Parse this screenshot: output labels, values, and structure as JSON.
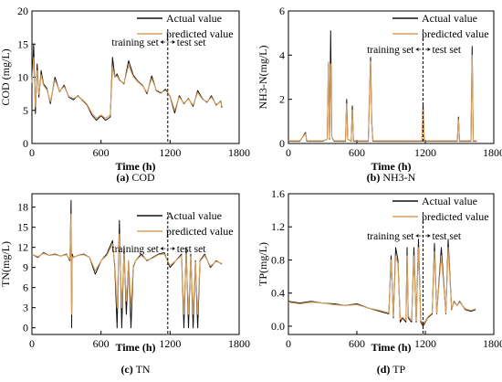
{
  "colors": {
    "actual": "#111111",
    "predicted": "#d9a05c",
    "predicted_peaks": "#c83a3a",
    "split_line": "#000000"
  },
  "chart_data": [
    {
      "type": "line",
      "panel_tag": "(a)",
      "caption": "COD",
      "xlabel": "Time (h)",
      "ylabel": "COD (mg/L)",
      "xlim": [
        0,
        1800
      ],
      "ylim": [
        0,
        20
      ],
      "xticks": [
        "0",
        "600",
        "1200",
        "1800"
      ],
      "yticks": [
        "0",
        "5",
        "10",
        "15",
        "20"
      ],
      "legend": [
        "Actual value",
        "predicted value"
      ],
      "legend_position": "top-right",
      "split_label": "training set",
      "split_label_right": "test set",
      "split_x": 1180,
      "series": [
        {
          "name": "Actual value",
          "x": [
            0,
            15,
            30,
            45,
            60,
            80,
            100,
            130,
            160,
            200,
            240,
            280,
            320,
            360,
            400,
            440,
            480,
            520,
            560,
            600,
            640,
            680,
            700,
            720,
            740,
            760,
            800,
            840,
            880,
            920,
            960,
            1000,
            1040,
            1080,
            1120,
            1160,
            1200,
            1240,
            1280,
            1320,
            1360,
            1400,
            1440,
            1480,
            1520,
            1560,
            1600,
            1640,
            1650
          ],
          "y": [
            9,
            15,
            4.5,
            12,
            7,
            11,
            9,
            8.3,
            6,
            10,
            7.8,
            8.8,
            7,
            6.6,
            7.2,
            6.5,
            5.8,
            4.3,
            3.5,
            4.2,
            3.5,
            4,
            13,
            10,
            10.5,
            9.6,
            9,
            12.5,
            10.3,
            9.4,
            8.8,
            7.5,
            10.2,
            8,
            7.6,
            8.2,
            7.1,
            4.6,
            7.2,
            6,
            6.8,
            5.6,
            8,
            6.8,
            6.2,
            7.2,
            5.8,
            6.4,
            5.4
          ]
        },
        {
          "name": "predicted value",
          "x": [
            0,
            15,
            30,
            45,
            60,
            80,
            100,
            130,
            160,
            200,
            240,
            280,
            320,
            360,
            400,
            440,
            480,
            520,
            560,
            600,
            640,
            680,
            700,
            720,
            740,
            760,
            800,
            840,
            880,
            920,
            960,
            1000,
            1040,
            1080,
            1120,
            1160,
            1200,
            1240,
            1280,
            1320,
            1360,
            1400,
            1440,
            1480,
            1520,
            1560,
            1600,
            1640,
            1650
          ],
          "y": [
            9.2,
            13,
            5.5,
            11,
            7.4,
            10.4,
            8.8,
            8.1,
            6.3,
            9.6,
            7.9,
            8.6,
            7.1,
            6.8,
            7.1,
            6.6,
            5.9,
            4.6,
            3.8,
            4.3,
            3.8,
            4.3,
            11.5,
            10,
            10.2,
            9.5,
            9.1,
            11.8,
            10.1,
            9.3,
            8.7,
            7.7,
            9.8,
            8.1,
            7.7,
            8,
            7.2,
            5,
            7,
            6.1,
            6.7,
            5.8,
            7.7,
            6.7,
            6.3,
            7,
            5.9,
            6.3,
            5.6
          ]
        }
      ]
    },
    {
      "type": "line",
      "panel_tag": "(b)",
      "caption": "NH3-N",
      "xlabel": "Time (h)",
      "ylabel": "NH3-N(mg/L)",
      "xlim": [
        0,
        1800
      ],
      "ylim": [
        0,
        6
      ],
      "xticks": [
        "0",
        "600",
        "1200",
        "1800"
      ],
      "yticks": [
        "0",
        "2",
        "4",
        "6"
      ],
      "legend": [
        "Actual value",
        "predicted value"
      ],
      "legend_position": "top-right",
      "split_label": "training set",
      "split_label_right": "test set",
      "split_x": 1180,
      "series": [
        {
          "name": "Actual value",
          "x": [
            0,
            100,
            150,
            160,
            200,
            300,
            340,
            350,
            360,
            370,
            380,
            400,
            450,
            500,
            510,
            520,
            550,
            560,
            570,
            600,
            700,
            720,
            730,
            740,
            800,
            900,
            1000,
            1100,
            1170,
            1180,
            1190,
            1300,
            1400,
            1480,
            1490,
            1500,
            1550,
            1600,
            1610,
            1620,
            1650
          ],
          "y": [
            0.1,
            0.1,
            0.5,
            0.1,
            0.1,
            0.1,
            0.2,
            3.6,
            0.2,
            5.1,
            0.3,
            0.1,
            0.1,
            0.1,
            2.0,
            0.2,
            0.1,
            1.7,
            0.1,
            0.1,
            0.1,
            3.9,
            1.0,
            0.1,
            0.1,
            0.1,
            0.1,
            0.1,
            0.1,
            1.8,
            0.1,
            0.1,
            0.1,
            0.1,
            1.2,
            0.1,
            0.1,
            0.1,
            4.4,
            0.1,
            0.1
          ]
        },
        {
          "name": "predicted value",
          "x": [
            0,
            100,
            150,
            160,
            200,
            300,
            340,
            350,
            360,
            370,
            380,
            400,
            450,
            500,
            510,
            520,
            550,
            560,
            570,
            600,
            700,
            720,
            730,
            740,
            800,
            900,
            1000,
            1100,
            1170,
            1180,
            1190,
            1300,
            1400,
            1480,
            1490,
            1500,
            1550,
            1600,
            1610,
            1620,
            1650
          ],
          "y": [
            0.12,
            0.12,
            0.45,
            0.12,
            0.12,
            0.12,
            0.2,
            3.7,
            0.25,
            3.6,
            0.3,
            0.12,
            0.12,
            0.12,
            1.8,
            0.2,
            0.12,
            1.5,
            0.12,
            0.12,
            0.12,
            3.7,
            0.9,
            0.12,
            0.12,
            0.12,
            0.12,
            0.12,
            0.12,
            1.6,
            0.12,
            0.12,
            0.12,
            0.12,
            1.1,
            0.12,
            0.12,
            0.12,
            4.0,
            0.12,
            0.12
          ]
        }
      ]
    },
    {
      "type": "line",
      "panel_tag": "(c)",
      "caption": "TN",
      "xlabel": "Time (h)",
      "ylabel": "TN(mg/L)",
      "xlim": [
        0,
        1800
      ],
      "ylim": [
        -1,
        20
      ],
      "xticks": [
        "0",
        "600",
        "1200",
        "1800"
      ],
      "yticks": [
        "0",
        "3",
        "6",
        "9",
        "12",
        "15",
        "18"
      ],
      "legend": [
        "Actual value",
        "predicted value"
      ],
      "legend_position": "top-right",
      "split_label": "training set",
      "split_label_right": "test set",
      "split_x": 1180,
      "series": [
        {
          "name": "Actual value",
          "x": [
            0,
            50,
            100,
            150,
            200,
            250,
            300,
            330,
            340,
            345,
            350,
            360,
            400,
            450,
            500,
            550,
            600,
            650,
            700,
            720,
            740,
            760,
            780,
            800,
            820,
            840,
            860,
            880,
            900,
            950,
            1000,
            1050,
            1100,
            1150,
            1200,
            1250,
            1300,
            1320,
            1340,
            1360,
            1380,
            1400,
            1420,
            1440,
            1460,
            1500,
            1550,
            1600,
            1650
          ],
          "y": [
            11,
            10.5,
            11.2,
            10.8,
            11,
            10.7,
            11,
            10,
            19,
            0,
            11,
            10.5,
            10.8,
            11,
            10.5,
            8,
            10,
            11,
            13,
            9,
            0,
            16,
            0,
            12,
            2,
            10,
            0,
            9,
            10,
            11,
            10,
            10.5,
            11,
            11.2,
            9,
            10,
            11,
            0,
            12,
            0,
            11,
            0,
            10,
            0,
            10,
            11,
            9,
            10,
            9.5
          ]
        },
        {
          "name": "predicted value",
          "x": [
            0,
            50,
            100,
            150,
            200,
            250,
            300,
            330,
            340,
            345,
            350,
            360,
            400,
            450,
            500,
            550,
            600,
            650,
            700,
            720,
            740,
            760,
            780,
            800,
            820,
            840,
            860,
            880,
            900,
            950,
            1000,
            1050,
            1100,
            1150,
            1200,
            1250,
            1300,
            1320,
            1340,
            1360,
            1380,
            1400,
            1420,
            1440,
            1460,
            1500,
            1550,
            1600,
            1650
          ],
          "y": [
            11,
            10.6,
            11.1,
            10.8,
            10.9,
            10.7,
            10.9,
            10.2,
            17,
            2,
            10.6,
            10.5,
            10.8,
            10.9,
            10.5,
            8.5,
            10,
            10.8,
            12.5,
            9.5,
            3,
            14,
            3,
            11,
            4,
            10,
            3,
            9.2,
            10,
            10.8,
            10.1,
            10.4,
            10.9,
            11,
            9.3,
            10,
            10.8,
            2,
            11,
            2,
            10.6,
            2,
            9.8,
            2,
            9.9,
            10.8,
            9.2,
            9.9,
            9.6
          ]
        }
      ]
    },
    {
      "type": "line",
      "panel_tag": "(d)",
      "caption": "TP",
      "xlabel": "Time (h)",
      "ylabel": "TP(mg/L)",
      "xlim": [
        0,
        1800
      ],
      "ylim": [
        -0.1,
        1.6
      ],
      "xticks": [
        "0",
        "600",
        "1200",
        "1800"
      ],
      "yticks": [
        "0.0",
        "0.4",
        "0.8",
        "1.2",
        "1.6"
      ],
      "legend": [
        "Actual value",
        "predicted value"
      ],
      "legend_position": "top-right",
      "split_label": "training set",
      "split_label_right": "test set",
      "split_x": 1180,
      "series": [
        {
          "name": "Actual value",
          "x": [
            0,
            100,
            200,
            300,
            400,
            500,
            600,
            700,
            800,
            880,
            900,
            920,
            940,
            960,
            980,
            1000,
            1030,
            1040,
            1050,
            1080,
            1100,
            1120,
            1140,
            1160,
            1180,
            1200,
            1220,
            1260,
            1280,
            1300,
            1340,
            1380,
            1400,
            1430,
            1450,
            1480,
            1500,
            1550,
            1600,
            1640
          ],
          "y": [
            0.3,
            0.28,
            0.3,
            0.28,
            0.27,
            0.25,
            0.27,
            0.22,
            0.18,
            0.15,
            0.85,
            0.1,
            0.95,
            0.8,
            0.05,
            0.1,
            0.05,
            0.95,
            0.1,
            0.05,
            0.95,
            0.05,
            1.05,
            0.05,
            0.0,
            0.05,
            0.1,
            0.15,
            1.0,
            0.15,
            0.95,
            0.15,
            1.05,
            0.2,
            0.3,
            0.25,
            0.3,
            0.2,
            0.18,
            0.2
          ]
        },
        {
          "name": "predicted value",
          "x": [
            0,
            100,
            200,
            300,
            400,
            500,
            600,
            700,
            800,
            880,
            900,
            920,
            940,
            960,
            980,
            1000,
            1030,
            1040,
            1050,
            1080,
            1100,
            1120,
            1140,
            1160,
            1180,
            1200,
            1220,
            1260,
            1280,
            1300,
            1340,
            1380,
            1400,
            1430,
            1450,
            1480,
            1500,
            1550,
            1600,
            1640
          ],
          "y": [
            0.29,
            0.27,
            0.29,
            0.28,
            0.26,
            0.25,
            0.26,
            0.22,
            0.19,
            0.16,
            0.8,
            0.12,
            0.85,
            0.75,
            0.08,
            0.11,
            0.07,
            0.85,
            0.12,
            0.07,
            0.85,
            0.07,
            0.95,
            0.07,
            0.03,
            0.06,
            0.11,
            0.16,
            0.9,
            0.16,
            0.85,
            0.16,
            0.95,
            0.21,
            0.29,
            0.25,
            0.29,
            0.21,
            0.19,
            0.21
          ]
        }
      ]
    }
  ]
}
